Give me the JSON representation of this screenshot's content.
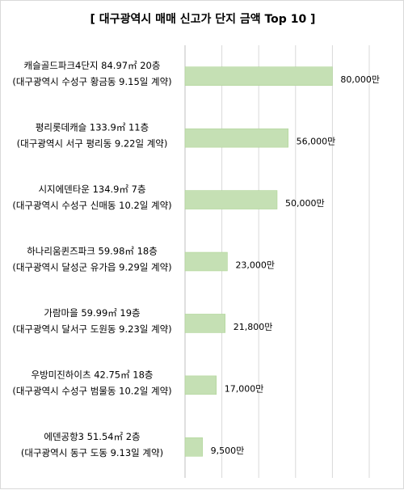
{
  "chart_data": {
    "type": "bar",
    "orientation": "horizontal",
    "title": "[ 대구광역시 매매 신고가 단지 금액 Top 10 ]",
    "categories": [
      [
        "캐슬골드파크4단지 84.97㎡ 20층",
        "(대구광역시 수성구 황금동 9.15일 계약)"
      ],
      [
        "평리롯데캐슬 133.9㎡ 11층",
        "(대구광역시 서구 평리동 9.22일 계약)"
      ],
      [
        "시지에덴타운 134.9㎡ 7층",
        "(대구광역시 수성구 신매동 10.2일 계약)"
      ],
      [
        "하나리움퀸즈파크 59.98㎡ 18층",
        "(대구광역시 달성군 유가읍 9.29일 계약)"
      ],
      [
        "가람마을 59.99㎡ 19층",
        "(대구광역시 달서구 도원동 9.23일 계약)"
      ],
      [
        "우방미진하이츠 42.75㎡ 18층",
        "(대구광역시 수성구 범물동 10.2일 계약)"
      ],
      [
        "에덴공항3 51.54㎡ 2층",
        "(대구광역시 동구 도동 9.13일 계약)"
      ]
    ],
    "values": [
      80000,
      56000,
      50000,
      23000,
      21800,
      17000,
      9500
    ],
    "value_labels": [
      "80,000만",
      "56,000만",
      "50,000만",
      "23,000만",
      "21,800만",
      "17,000만",
      "9,500만"
    ],
    "xlim": [
      0,
      100000
    ],
    "grid": true,
    "bar_color": "#c5e0b4",
    "bar_border_color": "#a9d18e"
  }
}
